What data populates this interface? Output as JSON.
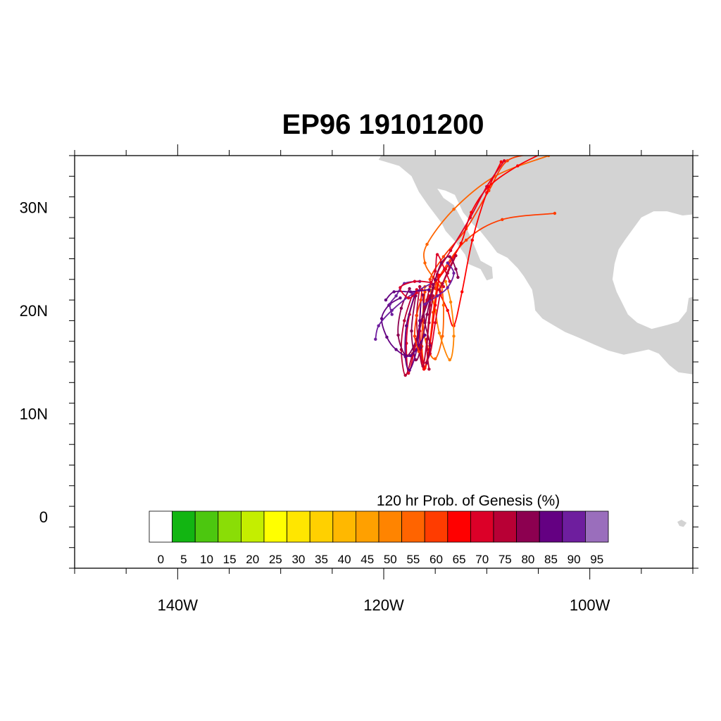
{
  "title": "EP96 19101200",
  "map": {
    "lon_range": [
      -150,
      -90
    ],
    "lat_range": [
      -5,
      35
    ],
    "land_color": "#d3d3d3",
    "lon_ticks": [
      {
        "lon": -140,
        "label": "140W"
      },
      {
        "lon": -120,
        "label": "120W"
      },
      {
        "lon": -100,
        "label": "100W"
      }
    ],
    "lat_ticks": [
      {
        "lat": 30,
        "label": "30N"
      },
      {
        "lat": 20,
        "label": "20N"
      },
      {
        "lat": 10,
        "label": "10N"
      },
      {
        "lat": 0,
        "label": "0"
      }
    ]
  },
  "colorbar": {
    "title": "120 hr Prob. of Genesis (%)",
    "labels": [
      "0",
      "5",
      "10",
      "15",
      "20",
      "25",
      "30",
      "35",
      "40",
      "45",
      "50",
      "55",
      "60",
      "65",
      "70",
      "75",
      "80",
      "85",
      "90",
      "95"
    ],
    "colors": [
      "#ffffff",
      "#12b512",
      "#4cc70f",
      "#8add06",
      "#c4ee00",
      "#ffff00",
      "#ffe600",
      "#ffd000",
      "#ffb800",
      "#ffa000",
      "#ff8400",
      "#ff6400",
      "#ff3c00",
      "#ff0000",
      "#dc0028",
      "#b80035",
      "#8c0050",
      "#640082",
      "#6e1e9e",
      "#9a6ebc"
    ]
  },
  "tracks": [
    {
      "color": "#ff6400",
      "points": [
        [
          -114.5,
          22.3
        ],
        [
          -115.2,
          23.2
        ],
        [
          -116.0,
          24.6
        ],
        [
          -115.8,
          26.4
        ],
        [
          -113.2,
          29.8
        ],
        [
          -109.2,
          33.0
        ],
        [
          -104.0,
          35.0
        ]
      ]
    },
    {
      "color": "#ff3c00",
      "points": [
        [
          -114.8,
          22.0
        ],
        [
          -115.5,
          23.0
        ],
        [
          -114.2,
          25.2
        ],
        [
          -112.0,
          27.9
        ],
        [
          -109.8,
          31.6
        ],
        [
          -108.0,
          34.5
        ],
        [
          -105.0,
          35.2
        ]
      ]
    },
    {
      "color": "#ff3c00",
      "points": [
        [
          -115.0,
          22.1
        ],
        [
          -114.6,
          23.3
        ],
        [
          -112.0,
          26.8
        ],
        [
          -108.5,
          28.8
        ],
        [
          -103.4,
          29.4
        ]
      ]
    },
    {
      "color": "#ff0000",
      "points": [
        [
          -115.2,
          22.5
        ],
        [
          -114.0,
          24.0
        ],
        [
          -112.5,
          26.5
        ],
        [
          -111.5,
          29.5
        ],
        [
          -109.8,
          32.0
        ],
        [
          -107.0,
          34.0
        ],
        [
          -104.0,
          35.5
        ]
      ]
    },
    {
      "color": "#ff0000",
      "points": [
        [
          -114.5,
          21.5
        ],
        [
          -113.8,
          20.0
        ],
        [
          -113.2,
          18.5
        ],
        [
          -112.4,
          21.8
        ],
        [
          -111.4,
          26.8
        ],
        [
          -110.0,
          31.4
        ],
        [
          -108.6,
          34.4
        ]
      ]
    },
    {
      "color": "#dc0028",
      "points": [
        [
          -114.2,
          22.3
        ],
        [
          -114.8,
          23.5
        ],
        [
          -113.5,
          25.8
        ],
        [
          -111.6,
          29.0
        ],
        [
          -110.0,
          32.0
        ],
        [
          -108.3,
          34.5
        ]
      ]
    },
    {
      "color": "#ff6400",
      "points": [
        [
          -116.0,
          22.3
        ],
        [
          -116.2,
          19.0
        ],
        [
          -115.8,
          16.5
        ],
        [
          -115.0,
          15.3
        ],
        [
          -114.3,
          17.5
        ],
        [
          -114.2,
          20.5
        ],
        [
          -114.4,
          22.6
        ]
      ]
    },
    {
      "color": "#ff8400",
      "points": [
        [
          -115.5,
          22.0
        ],
        [
          -115.0,
          20.0
        ],
        [
          -114.6,
          17.8
        ],
        [
          -113.6,
          15.2
        ],
        [
          -113.2,
          17.5
        ],
        [
          -113.5,
          20.8
        ],
        [
          -114.0,
          22.8
        ]
      ]
    },
    {
      "color": "#ff3c00",
      "points": [
        [
          -116.0,
          21.8
        ],
        [
          -116.2,
          19.0
        ],
        [
          -116.3,
          16.5
        ],
        [
          -116.0,
          14.4
        ],
        [
          -115.6,
          16.2
        ],
        [
          -115.2,
          19.8
        ],
        [
          -114.8,
          22.6
        ]
      ]
    },
    {
      "color": "#ff0000",
      "points": [
        [
          -116.3,
          22.0
        ],
        [
          -116.5,
          19.0
        ],
        [
          -116.4,
          16.2
        ],
        [
          -116.1,
          14.3
        ],
        [
          -115.5,
          16.8
        ],
        [
          -115.0,
          20.5
        ],
        [
          -114.6,
          23.4
        ]
      ]
    },
    {
      "color": "#dc0028",
      "points": [
        [
          -116.8,
          22.0
        ],
        [
          -117.5,
          19.6
        ],
        [
          -117.8,
          16.8
        ],
        [
          -117.6,
          13.9
        ],
        [
          -117.0,
          16.2
        ],
        [
          -116.3,
          19.0
        ],
        [
          -115.6,
          21.4
        ]
      ]
    },
    {
      "color": "#dc0028",
      "points": [
        [
          -115.8,
          21.0
        ],
        [
          -116.5,
          18.0
        ],
        [
          -116.2,
          15.0
        ],
        [
          -115.5,
          15.8
        ],
        [
          -115.0,
          18.8
        ],
        [
          -114.5,
          21.8
        ]
      ]
    },
    {
      "color": "#b80035",
      "points": [
        [
          -117.2,
          21.6
        ],
        [
          -118.0,
          19.0
        ],
        [
          -118.3,
          16.2
        ],
        [
          -117.9,
          13.7
        ],
        [
          -117.2,
          15.8
        ],
        [
          -116.5,
          18.5
        ],
        [
          -115.6,
          21.9
        ]
      ]
    },
    {
      "color": "#b80035",
      "points": [
        [
          -116.5,
          22.3
        ],
        [
          -116.8,
          19.5
        ],
        [
          -116.6,
          16.5
        ],
        [
          -116.2,
          14.6
        ],
        [
          -115.8,
          17.2
        ],
        [
          -115.5,
          20.5
        ],
        [
          -115.0,
          22.9
        ]
      ]
    },
    {
      "color": "#8c0050",
      "points": [
        [
          -117.5,
          22.1
        ],
        [
          -118.3,
          20.2
        ],
        [
          -118.6,
          17.6
        ],
        [
          -117.8,
          15.6
        ],
        [
          -116.8,
          17.2
        ],
        [
          -116.2,
          19.4
        ],
        [
          -115.2,
          22.2
        ]
      ]
    },
    {
      "color": "#8c0050",
      "points": [
        [
          -116.9,
          21.4
        ],
        [
          -117.3,
          18.0
        ],
        [
          -116.9,
          15.2
        ],
        [
          -116.4,
          16.4
        ],
        [
          -115.8,
          19.6
        ],
        [
          -115.2,
          22.5
        ]
      ]
    },
    {
      "color": "#640082",
      "points": [
        [
          -118.4,
          21.2
        ],
        [
          -119.5,
          20.5
        ],
        [
          -120.2,
          19.2
        ],
        [
          -119.7,
          17.4
        ],
        [
          -118.8,
          16.2
        ],
        [
          -117.4,
          15.6
        ],
        [
          -116.0,
          17.6
        ]
      ]
    },
    {
      "color": "#640082",
      "points": [
        [
          -117.0,
          21.5
        ],
        [
          -117.8,
          18.5
        ],
        [
          -117.9,
          15.5
        ],
        [
          -117.5,
          14.2
        ],
        [
          -116.8,
          16.2
        ],
        [
          -116.5,
          19.0
        ],
        [
          -116.4,
          21.0
        ]
      ]
    },
    {
      "color": "#6e1e9e",
      "points": [
        [
          -115.4,
          22.6
        ],
        [
          -117.2,
          21.6
        ],
        [
          -119.2,
          20.0
        ],
        [
          -120.5,
          18.5
        ],
        [
          -120.8,
          17.2
        ]
      ]
    },
    {
      "color": "#6e1e9e",
      "points": [
        [
          -116.5,
          22.8
        ],
        [
          -118.0,
          22.6
        ],
        [
          -118.8,
          21.4
        ],
        [
          -119.4,
          20.6
        ],
        [
          -119.2,
          19.6
        ]
      ]
    },
    {
      "color": "#640082",
      "points": [
        [
          -115.6,
          22.0
        ],
        [
          -117.4,
          21.8
        ],
        [
          -119.0,
          21.8
        ],
        [
          -119.8,
          21.0
        ]
      ]
    },
    {
      "color": "#8c0050",
      "points": [
        [
          -116.2,
          21.5
        ],
        [
          -116.0,
          18.8
        ],
        [
          -115.5,
          16.6
        ],
        [
          -115.8,
          14.9
        ]
      ]
    },
    {
      "color": "#dc0028",
      "points": [
        [
          -115.5,
          22.3
        ],
        [
          -115.0,
          23.8
        ],
        [
          -114.8,
          25.4
        ],
        [
          -114.1,
          24.0
        ],
        [
          -113.6,
          22.8
        ]
      ]
    },
    {
      "color": "#b80035",
      "points": [
        [
          -114.3,
          22.6
        ],
        [
          -113.6,
          24.2
        ],
        [
          -113.0,
          25.3
        ],
        [
          -113.8,
          23.6
        ],
        [
          -114.6,
          22.0
        ]
      ]
    },
    {
      "color": "#dc0028",
      "points": [
        [
          -116.8,
          21.7
        ],
        [
          -117.6,
          21.2
        ],
        [
          -118.4,
          22.2
        ],
        [
          -117.0,
          22.8
        ],
        [
          -115.4,
          22.7
        ]
      ]
    },
    {
      "color": "#8c0050",
      "points": [
        [
          -115.0,
          23.0
        ],
        [
          -114.4,
          24.6
        ],
        [
          -113.6,
          25.2
        ],
        [
          -113.0,
          24.0
        ],
        [
          -112.8,
          23.2
        ]
      ]
    },
    {
      "color": "#6e1e9e",
      "points": [
        [
          -116.0,
          20.6
        ],
        [
          -114.8,
          21.4
        ],
        [
          -113.8,
          22.2
        ],
        [
          -113.2,
          23.6
        ],
        [
          -113.8,
          24.6
        ]
      ]
    },
    {
      "color": "#ff3c00",
      "points": [
        [
          -116.4,
          21.0
        ],
        [
          -116.8,
          19.5
        ],
        [
          -117.0,
          17.5
        ],
        [
          -116.6,
          16.0
        ]
      ]
    },
    {
      "color": "#b80035",
      "points": [
        [
          -115.2,
          21.4
        ],
        [
          -115.6,
          18.8
        ],
        [
          -115.8,
          16.2
        ],
        [
          -115.6,
          14.3
        ]
      ]
    }
  ]
}
